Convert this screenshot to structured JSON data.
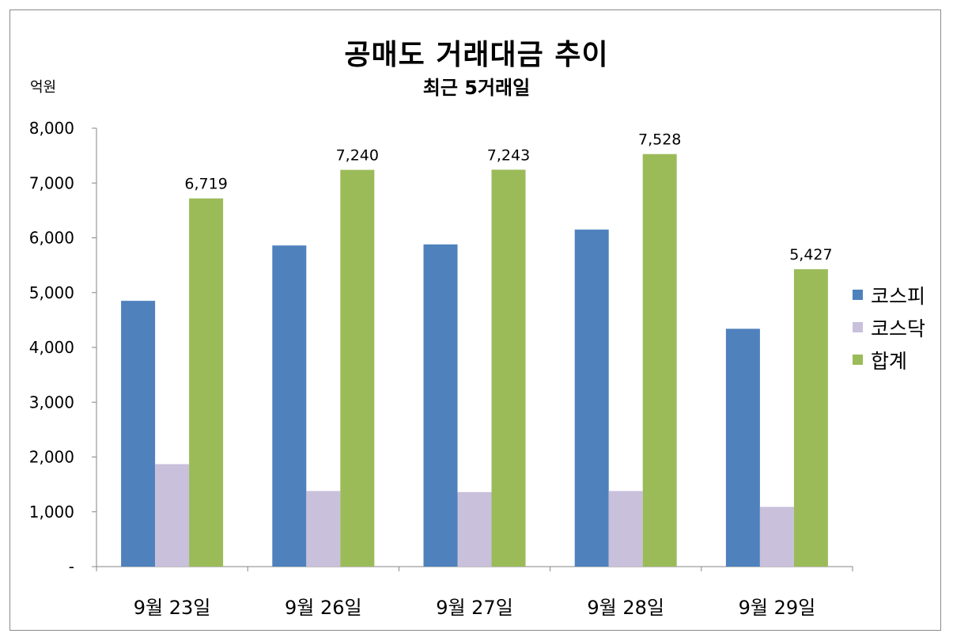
{
  "chart_data": {
    "type": "bar",
    "title": "공매도 거래대금 추이",
    "subtitle": "최근 5거래일",
    "ylabel": "억원",
    "ylim": [
      0,
      8000
    ],
    "yticks": [
      0,
      1000,
      2000,
      3000,
      4000,
      5000,
      6000,
      7000,
      8000
    ],
    "ytick_labels": [
      "-",
      "1,000",
      "2,000",
      "3,000",
      "4,000",
      "5,000",
      "6,000",
      "7,000",
      "8,000"
    ],
    "categories": [
      "9월 23일",
      "9월 26일",
      "9월 27일",
      "9월 28일",
      "9월 29일"
    ],
    "series": [
      {
        "name": "코스피",
        "color": "#4F81BD",
        "values": [
          4850,
          5860,
          5880,
          6150,
          4340
        ]
      },
      {
        "name": "코스닥",
        "color": "#C9C0DC",
        "values": [
          1870,
          1380,
          1360,
          1380,
          1090
        ]
      },
      {
        "name": "합계",
        "color": "#9BBB59",
        "values": [
          6719,
          7240,
          7243,
          7528,
          5427
        ],
        "data_labels": [
          "6,719",
          "7,240",
          "7,243",
          "7,528",
          "5,427"
        ]
      }
    ],
    "grid": false,
    "legend_position": "right"
  }
}
